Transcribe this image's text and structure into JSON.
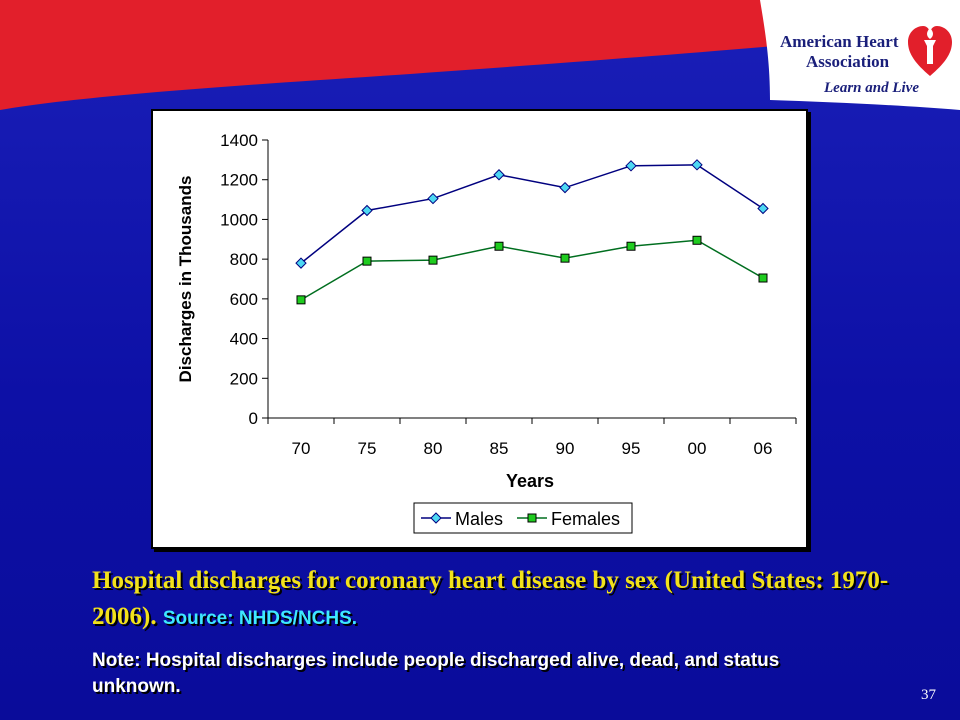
{
  "logo": {
    "org_line1": "American Heart",
    "org_line2": "Association",
    "tagline": "Learn and Live",
    "brand_red": "#e21f2b",
    "brand_navy": "#1a1f7a"
  },
  "chart_data": {
    "type": "line",
    "categories": [
      "70",
      "75",
      "80",
      "85",
      "90",
      "95",
      "00",
      "06"
    ],
    "series": [
      {
        "name": "Males",
        "values": [
          780,
          1045,
          1105,
          1225,
          1160,
          1270,
          1275,
          1055
        ],
        "color": "#00007f",
        "marker": "diamond",
        "marker_color": "#4dd8f2"
      },
      {
        "name": "Females",
        "values": [
          595,
          790,
          795,
          865,
          805,
          865,
          895,
          705
        ],
        "color": "#006e1f",
        "marker": "square",
        "marker_color": "#1fcc1f"
      }
    ],
    "title": "",
    "xlabel": "Years",
    "ylabel": "Discharges in Thousands",
    "ylim": [
      0,
      1400
    ],
    "yticks": [
      0,
      200,
      400,
      600,
      800,
      1000,
      1200,
      1400
    ],
    "grid": false,
    "legend_position": "bottom-center"
  },
  "caption": {
    "main": "Hospital discharges for coronary heart disease by sex (United States: 1970-2006).",
    "source": "Source: NHDS/NCHS."
  },
  "note": "Note: Hospital discharges include people discharged alive, dead, and status unknown.",
  "page_number": "37"
}
